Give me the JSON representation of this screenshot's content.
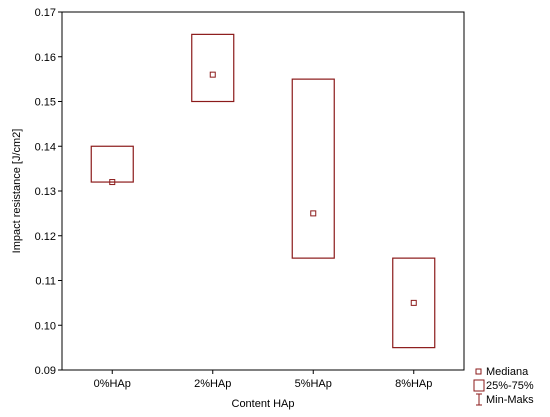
{
  "chart_data": {
    "type": "box",
    "xlabel": "Content HAp",
    "ylabel": "Impact resistance [J/cm2]",
    "ylim": [
      0.09,
      0.17
    ],
    "yticks": [
      "0.09",
      "0.10",
      "0.11",
      "0.12",
      "0.13",
      "0.14",
      "0.15",
      "0.16",
      "0.17"
    ],
    "categories": [
      "0%HAp",
      "2%HAp",
      "5%HAp",
      "8%HAp"
    ],
    "median": [
      0.132,
      0.156,
      0.125,
      0.105
    ],
    "q1": [
      0.132,
      0.15,
      0.115,
      0.095
    ],
    "q3": [
      0.14,
      0.165,
      0.155,
      0.115
    ],
    "color": "#8b1a1a",
    "legend": {
      "position": "bottom-right",
      "entries": [
        "Mediana",
        "25%-75%",
        "Min-Maks"
      ]
    }
  }
}
